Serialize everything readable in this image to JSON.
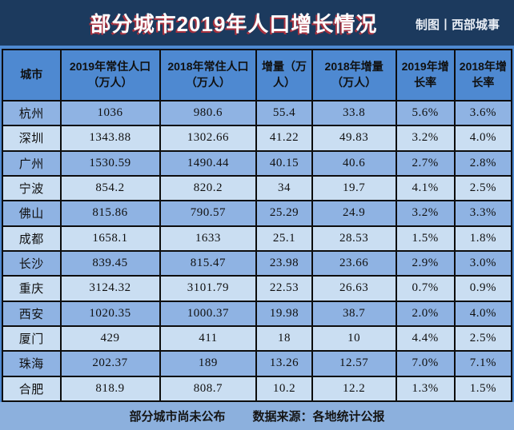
{
  "banner": {
    "title": "部分城市2019年人口增长情况",
    "credit": "制图丨西部城事"
  },
  "chart_data": {
    "type": "table",
    "title": "部分城市2019年人口增长情况",
    "columns": [
      "城市",
      "2019年常住人口（万人）",
      "2018年常住人口（万人）",
      "增量（万人）",
      "2018年增量（万人）",
      "2019年增长率",
      "2018年增长率"
    ],
    "rows": [
      [
        "杭州",
        "1036",
        "980.6",
        "55.4",
        "33.8",
        "5.6%",
        "3.6%"
      ],
      [
        "深圳",
        "1343.88",
        "1302.66",
        "41.22",
        "49.83",
        "3.2%",
        "4.0%"
      ],
      [
        "广州",
        "1530.59",
        "1490.44",
        "40.15",
        "40.6",
        "2.7%",
        "2.8%"
      ],
      [
        "宁波",
        "854.2",
        "820.2",
        "34",
        "19.7",
        "4.1%",
        "2.5%"
      ],
      [
        "佛山",
        "815.86",
        "790.57",
        "25.29",
        "24.9",
        "3.2%",
        "3.3%"
      ],
      [
        "成都",
        "1658.1",
        "1633",
        "25.1",
        "28.53",
        "1.5%",
        "1.8%"
      ],
      [
        "长沙",
        "839.45",
        "815.47",
        "23.98",
        "23.66",
        "2.9%",
        "3.0%"
      ],
      [
        "重庆",
        "3124.32",
        "3101.79",
        "22.53",
        "26.63",
        "0.7%",
        "0.9%"
      ],
      [
        "西安",
        "1020.35",
        "1000.37",
        "19.98",
        "38.7",
        "2.0%",
        "4.0%"
      ],
      [
        "厦门",
        "429",
        "411",
        "18",
        "10",
        "4.4%",
        "2.5%"
      ],
      [
        "珠海",
        "202.37",
        "189",
        "13.26",
        "12.57",
        "7.0%",
        "7.1%"
      ],
      [
        "合肥",
        "818.9",
        "808.7",
        "10.2",
        "12.2",
        "1.3%",
        "1.5%"
      ]
    ]
  },
  "footer": {
    "note": "部分城市尚未公布",
    "source": "数据来源：各地统计公报"
  },
  "colors": {
    "banner_bg": "#1c3a5e",
    "header_bg": "#4e89d1",
    "row_dark": "#8fb3e3",
    "row_light": "#cadef2",
    "footer_bg": "#8cb0dd",
    "border": "#0d0d0d",
    "title_text": "#ffffff",
    "title_shadow": "#a83240",
    "cell_text": "#101010"
  }
}
